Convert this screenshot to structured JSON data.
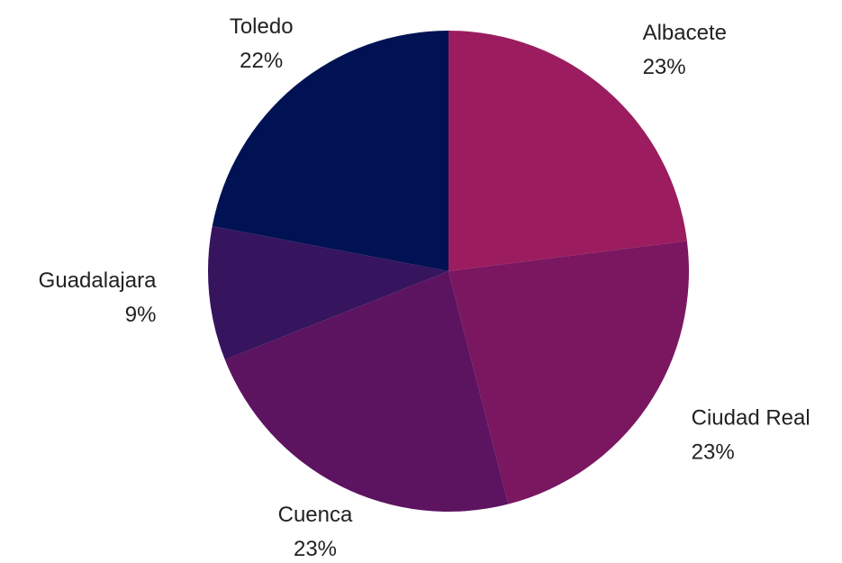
{
  "chart_data": {
    "type": "pie",
    "categories": [
      "Albacete",
      "Ciudad Real",
      "Cuenca",
      "Guadalajara",
      "Toledo"
    ],
    "values": [
      23,
      23,
      23,
      9,
      22
    ],
    "value_labels": [
      "23%",
      "23%",
      "23%",
      "9%",
      "22%"
    ],
    "colors": [
      "#9b1d5f",
      "#7b1660",
      "#5c1460",
      "#36145e",
      "#001254"
    ]
  }
}
